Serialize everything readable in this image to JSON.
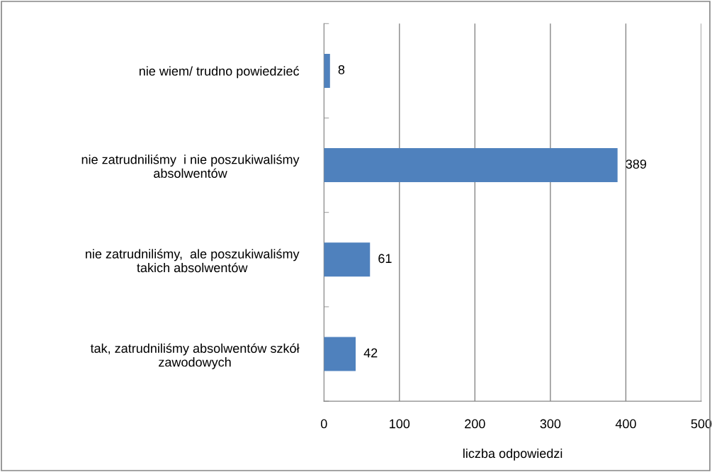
{
  "chart_data": {
    "type": "bar",
    "orientation": "horizontal",
    "categories": [
      "nie wiem/ trudno powiedzieć",
      "nie zatrudniliśmy  i nie poszukiwaliśmy\nabsolwentów",
      "nie zatrudniliśmy,  ale poszukiwaliśmy\ntakich absolwentów",
      "tak, zatrudniliśmy absolwentów szkół\nzawodowych"
    ],
    "values": [
      8,
      389,
      61,
      42
    ],
    "color": "#4f81bd",
    "xlim": [
      0,
      500
    ],
    "xticks": [
      0,
      100,
      200,
      300,
      400,
      500
    ],
    "grid": "x",
    "xlabel": "liczba odpowiedzi",
    "data_labels": true
  }
}
